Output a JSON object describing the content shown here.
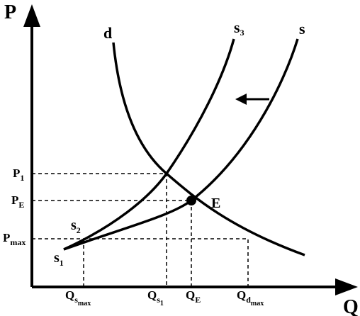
{
  "axes": {
    "y": "P",
    "x": "Q"
  },
  "curves": {
    "demand": "d",
    "supply_new": {
      "base": "s",
      "sub": "3"
    },
    "supply": "s"
  },
  "equilibrium": "E",
  "points": {
    "s1": {
      "base": "s",
      "sub": "1"
    },
    "s2": {
      "base": "s",
      "sub": "2"
    }
  },
  "y_labels": [
    {
      "base": "P",
      "sub": "1"
    },
    {
      "base": "P",
      "sub": "E"
    },
    {
      "base": "P",
      "sub": "max"
    }
  ],
  "x_labels": [
    {
      "base": "Q",
      "sub": "s",
      "sub2": "max"
    },
    {
      "base": "Q",
      "sub": "s",
      "sub2": "1"
    },
    {
      "base": "Q",
      "sub": "E"
    },
    {
      "base": "Q",
      "sub": "d",
      "sub2": "max"
    }
  ]
}
